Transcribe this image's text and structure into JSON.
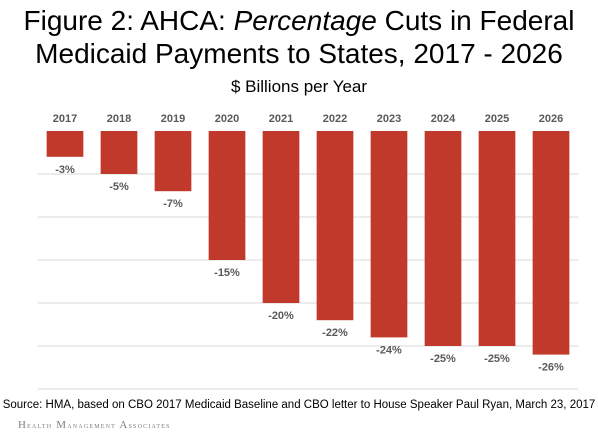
{
  "chart_data": {
    "type": "bar",
    "title_parts": {
      "line1_prefix": "Figure 2: AHCA: ",
      "line1_italic": "Percentage",
      "line1_suffix": " Cuts in Federal",
      "line2": "Medicaid Payments to States, 2017 - 2026"
    },
    "subtitle": "$ Billions per Year",
    "categories": [
      "2017",
      "2018",
      "2019",
      "2020",
      "2021",
      "2022",
      "2023",
      "2024",
      "2025",
      "2026"
    ],
    "values": [
      -3,
      -5,
      -7,
      -15,
      -20,
      -22,
      -24,
      -25,
      -25,
      -26
    ],
    "data_labels": [
      "-3%",
      "-5%",
      "-7%",
      "-15%",
      "-20%",
      "-22%",
      "-24%",
      "-25%",
      "-25%",
      "-26%"
    ],
    "ylim": [
      -30,
      0
    ],
    "grid": true,
    "bar_color": "#c0392b",
    "category_label_color": "#595959",
    "data_label_color": "#595959",
    "gridline_color": "#d9d9d9"
  },
  "source": "Source: HMA, based on CBO 2017 Medicaid Baseline and CBO letter to House Speaker Paul Ryan, March 23, 2017",
  "footer": {
    "word1_initial": "H",
    "word1_rest": "ealth",
    "word2_initial": "M",
    "word2_rest": "anagement",
    "word3_initial": "A",
    "word3_rest": "ssociates"
  }
}
